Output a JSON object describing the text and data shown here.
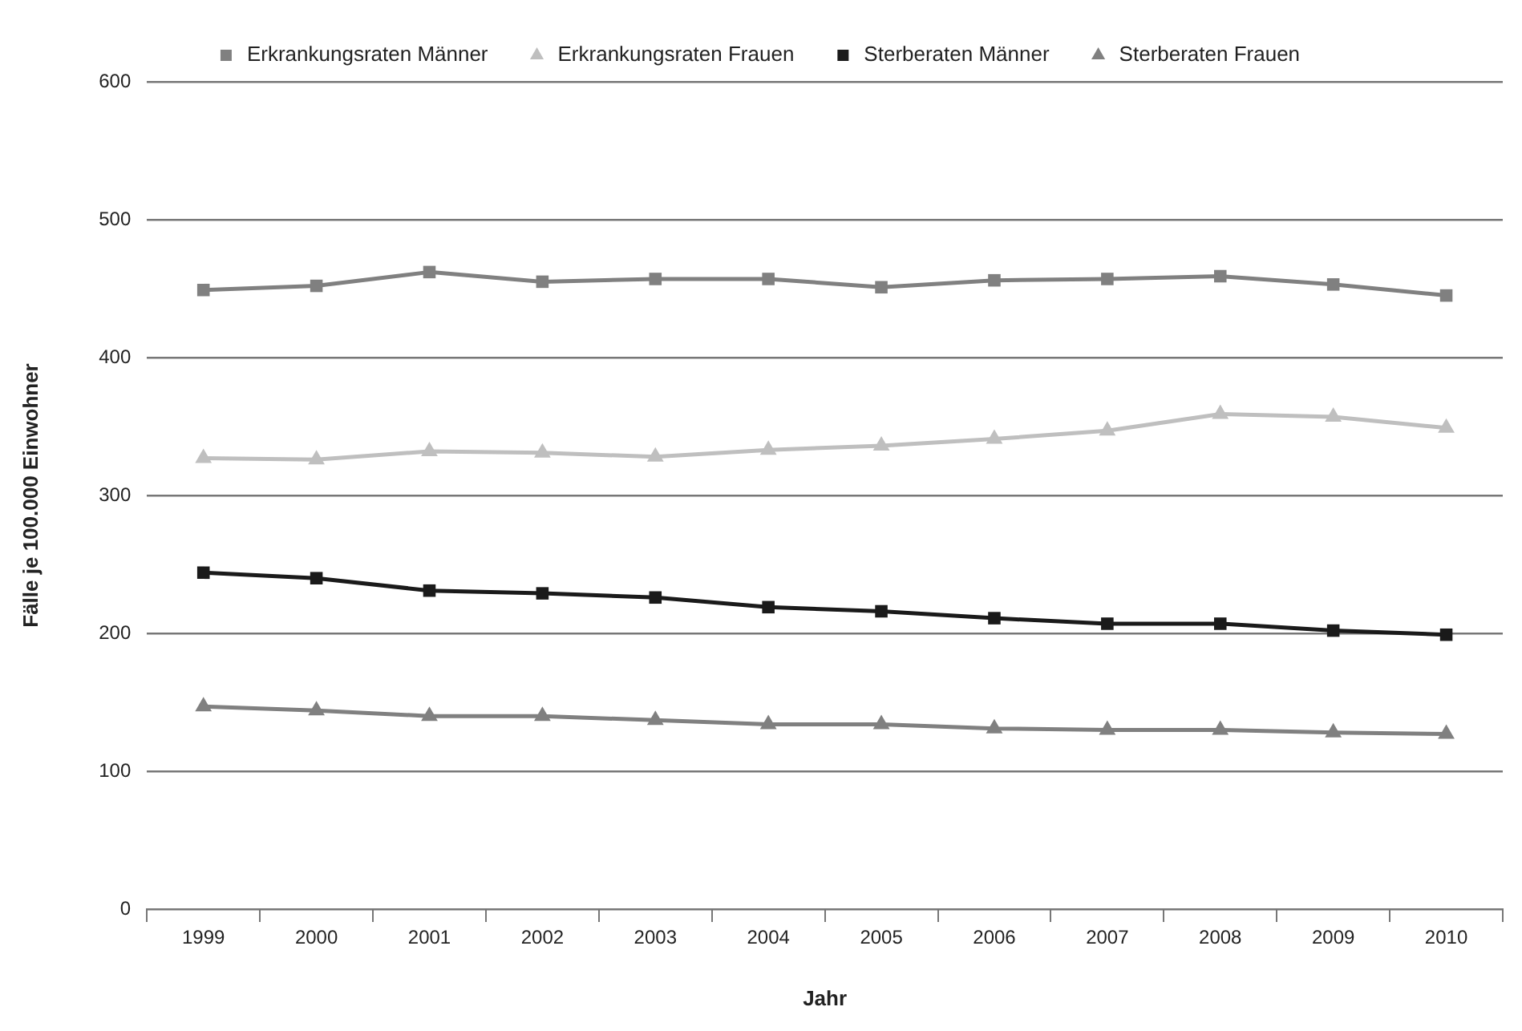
{
  "chart_data": {
    "type": "line",
    "xlabel": "Jahr",
    "ylabel": "Fälle je 100.000 Einwohner",
    "categories": [
      "1999",
      "2000",
      "2001",
      "2002",
      "2003",
      "2004",
      "2005",
      "2006",
      "2007",
      "2008",
      "2009",
      "2010"
    ],
    "series": [
      {
        "name": "Erkrankungsraten Männer",
        "color": "#808080",
        "marker": "square",
        "values": [
          449,
          452,
          462,
          455,
          457,
          457,
          451,
          456,
          457,
          459,
          453,
          445
        ]
      },
      {
        "name": "Erkrankungsraten Frauen",
        "color": "#bfbfbf",
        "marker": "triangle",
        "values": [
          327,
          326,
          332,
          331,
          328,
          333,
          336,
          341,
          347,
          359,
          357,
          349
        ]
      },
      {
        "name": "Sterberaten Männer",
        "color": "#1a1a1a",
        "marker": "square",
        "values": [
          244,
          240,
          231,
          229,
          226,
          219,
          216,
          211,
          207,
          207,
          202,
          199
        ]
      },
      {
        "name": "Sterberaten Frauen",
        "color": "#808080",
        "marker": "triangle",
        "values": [
          147,
          144,
          140,
          140,
          137,
          134,
          134,
          131,
          130,
          130,
          128,
          127
        ]
      }
    ],
    "ylim": [
      0,
      600
    ],
    "yticks": [
      0,
      100,
      200,
      300,
      400,
      500,
      600
    ],
    "grid": "y",
    "legend": "top",
    "line_style": "solid"
  }
}
